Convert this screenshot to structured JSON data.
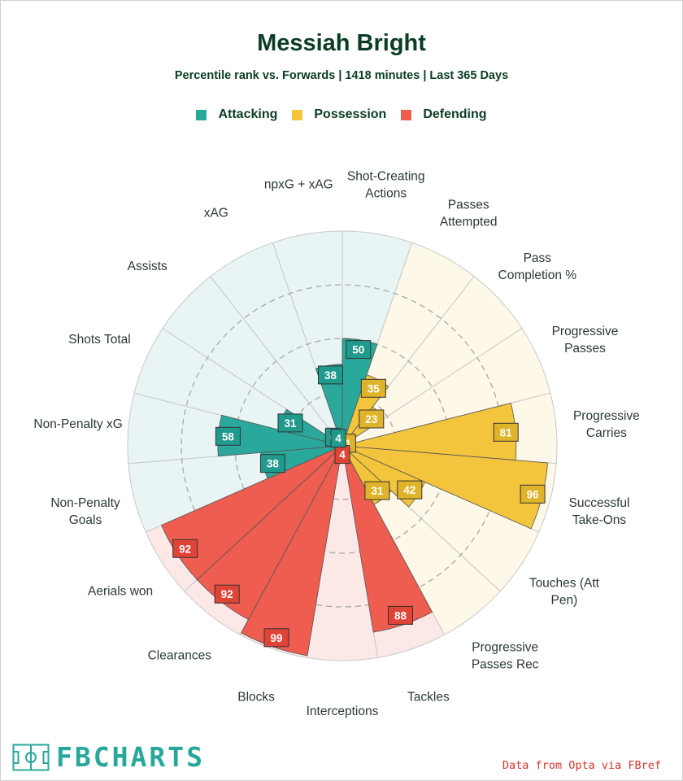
{
  "header": {
    "title": "Messiah Bright",
    "subtitle": "Percentile rank vs. Forwards | 1418 minutes | Last 365 Days"
  },
  "legend": [
    {
      "label": "Attacking",
      "color": "#2aa89b"
    },
    {
      "label": "Possession",
      "color": "#f2c53d"
    },
    {
      "label": "Defending",
      "color": "#ee5d50"
    }
  ],
  "footer": {
    "logo_text": "FBCHARTS",
    "source": "Data from Opta via FBref"
  },
  "colors": {
    "attacking_fill": "#2aa89b",
    "attacking_bg": "#e8f5f4",
    "attacking_box": "#1f9a8c",
    "possession_fill": "#f2c53d",
    "possession_bg": "#fdf8e8",
    "possession_box": "#e0b42a",
    "defending_fill": "#ee5d50",
    "defending_bg": "#fde8e8",
    "defending_box": "#df4437"
  },
  "chart_data": {
    "type": "radar",
    "title": "Messiah Bright",
    "value_range": [
      0,
      100
    ],
    "grid": "dashed rings at 25, 50, 75",
    "labels_in_chart": true,
    "series": [
      {
        "name": "Attacking",
        "categories": [
          "npxG + xAG",
          "Shot-Creating\nActions",
          "Non-Penalty\nGoals",
          "Non-Penalty xG",
          "Shots Total",
          "Assists",
          "xAG"
        ],
        "values": [
          38,
          50,
          38,
          58,
          31,
          6,
          4
        ]
      },
      {
        "name": "Possession",
        "categories": [
          "Passes\nAttempted",
          "Pass\nCompletion %",
          "Progressive\nPasses",
          "Progressive\nCarries",
          "Successful\nTake-Ons",
          "Touches (Att\nPen)",
          "Progressive\nPasses Rec"
        ],
        "values": [
          35,
          23,
          1,
          81,
          96,
          42,
          31
        ]
      },
      {
        "name": "Defending",
        "categories": [
          "Tackles",
          "Interceptions",
          "Blocks",
          "Clearances",
          "Aerials won"
        ],
        "values": [
          88,
          4,
          99,
          92,
          92
        ]
      }
    ],
    "segments": [
      {
        "label": "npxG + xAG",
        "value": 38,
        "group": "Attacking"
      },
      {
        "label": "Shot-Creating\nActions",
        "value": 50,
        "group": "Attacking"
      },
      {
        "label": "Passes\nAttempted",
        "value": 35,
        "group": "Possession"
      },
      {
        "label": "Pass\nCompletion %",
        "value": 23,
        "group": "Possession"
      },
      {
        "label": "Progressive\nPasses",
        "value": 1,
        "group": "Possession"
      },
      {
        "label": "Progressive\nCarries",
        "value": 81,
        "group": "Possession"
      },
      {
        "label": "Successful\nTake-Ons",
        "value": 96,
        "group": "Possession"
      },
      {
        "label": "Touches (Att\nPen)",
        "value": 42,
        "group": "Possession"
      },
      {
        "label": "Progressive\nPasses Rec",
        "value": 31,
        "group": "Possession"
      },
      {
        "label": "Tackles",
        "value": 88,
        "group": "Defending"
      },
      {
        "label": "Interceptions",
        "value": 4,
        "group": "Defending"
      },
      {
        "label": "Blocks",
        "value": 99,
        "group": "Defending"
      },
      {
        "label": "Clearances",
        "value": 92,
        "group": "Defending"
      },
      {
        "label": "Aerials won",
        "value": 92,
        "group": "Defending"
      },
      {
        "label": "Non-Penalty\nGoals",
        "value": 38,
        "group": "Attacking"
      },
      {
        "label": "Non-Penalty xG",
        "value": 58,
        "group": "Attacking"
      },
      {
        "label": "Shots Total",
        "value": 31,
        "group": "Attacking"
      },
      {
        "label": "Assists",
        "value": 6,
        "group": "Attacking"
      },
      {
        "label": "xAG",
        "value": 4,
        "group": "Attacking"
      }
    ]
  }
}
